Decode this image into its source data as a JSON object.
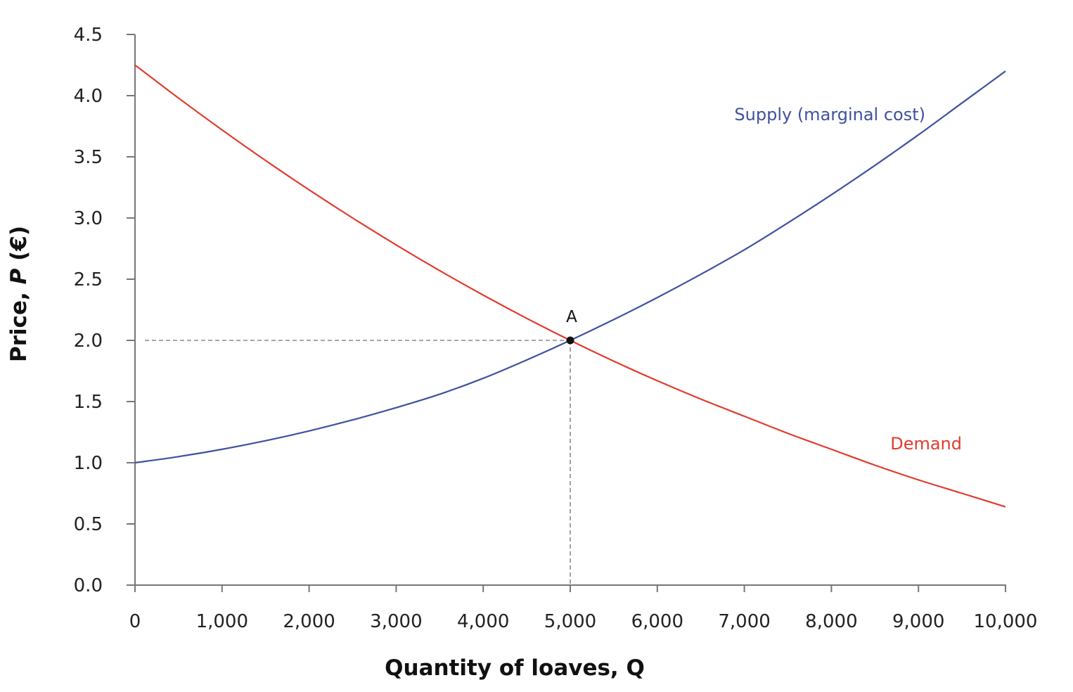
{
  "chart_data": {
    "type": "line",
    "title": "",
    "xlabel": "Quantity of loaves, Q",
    "ylabel_prefix": "Price, ",
    "ylabel_var": "P",
    "ylabel_unit": " (€)",
    "xlim": [
      0,
      10000
    ],
    "ylim": [
      0,
      4.5
    ],
    "x_ticks": [
      0,
      1000,
      2000,
      3000,
      4000,
      5000,
      6000,
      7000,
      8000,
      9000,
      10000
    ],
    "x_tick_labels": [
      "0",
      "1,000",
      "2,000",
      "3,000",
      "4,000",
      "5,000",
      "6,000",
      "7,000",
      "8,000",
      "9,000",
      "10,000"
    ],
    "y_ticks": [
      0,
      0.5,
      1.0,
      1.5,
      2.0,
      2.5,
      3.0,
      3.5,
      4.0,
      4.5
    ],
    "y_tick_labels": [
      "0.0",
      "0.5",
      "1.0",
      "1.5",
      "2.0",
      "2.5",
      "3.0",
      "3.5",
      "4.0",
      "4.5"
    ],
    "grid": false,
    "series": [
      {
        "name": "Supply (marginal cost)",
        "color": "#3f51a0",
        "x": [
          0,
          500,
          1000,
          1500,
          2000,
          2500,
          3000,
          3500,
          4000,
          4500,
          5000,
          5500,
          6000,
          6500,
          7000,
          7500,
          8000,
          8500,
          9000,
          9500,
          10000
        ],
        "y": [
          1.0,
          1.05,
          1.11,
          1.18,
          1.26,
          1.35,
          1.45,
          1.56,
          1.69,
          1.84,
          2.0,
          2.17,
          2.35,
          2.54,
          2.74,
          2.96,
          3.19,
          3.43,
          3.68,
          3.94,
          4.2
        ]
      },
      {
        "name": "Demand",
        "color": "#e23b2e",
        "x": [
          0,
          500,
          1000,
          1500,
          2000,
          2500,
          3000,
          3500,
          4000,
          4500,
          5000,
          5500,
          6000,
          6500,
          7000,
          7500,
          8000,
          8500,
          9000,
          9500,
          10000
        ],
        "y": [
          4.25,
          3.98,
          3.72,
          3.47,
          3.23,
          3.0,
          2.78,
          2.57,
          2.37,
          2.18,
          2.0,
          1.83,
          1.67,
          1.52,
          1.38,
          1.24,
          1.11,
          0.98,
          0.86,
          0.75,
          0.64
        ]
      }
    ],
    "annotations": [
      {
        "label": "A",
        "x": 5000,
        "y": 2.0
      }
    ]
  }
}
